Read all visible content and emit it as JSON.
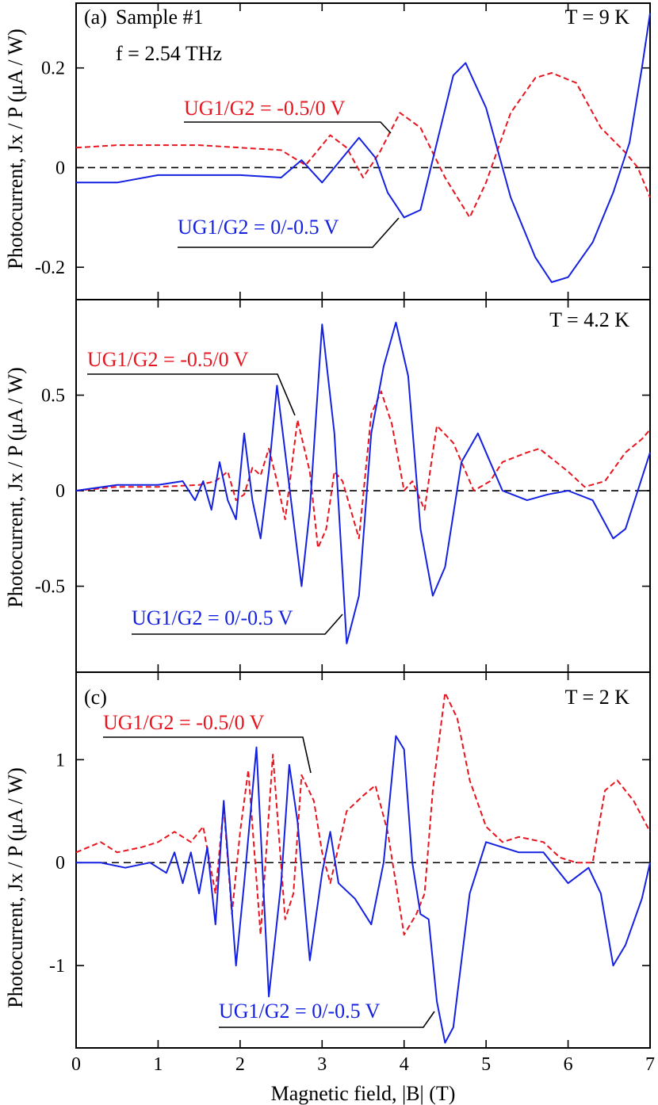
{
  "chart_data": [
    {
      "type": "line",
      "panel_label": "(a)",
      "sample": "Sample #1",
      "frequency_label": "f = 2.54 THz",
      "temperature_label": "T = 9 K",
      "ylabel": "Photocurrent, Jx / P (μA / W)",
      "xlabel": "",
      "xlim": [
        0,
        7
      ],
      "ylim": [
        -0.265,
        0.33
      ],
      "x_ticks": [
        0,
        1,
        2,
        3,
        4,
        5,
        6,
        7
      ],
      "y_ticks": [
        -0.2,
        0,
        0.2
      ],
      "y_tick_labels": [
        "-0.2",
        "0",
        "0.2"
      ],
      "zero_line": true,
      "series": [
        {
          "name": "UG1/G2 = -0.5/0 V",
          "color": "#e8141e",
          "dash": "dashed",
          "points": [
            [
              0,
              0.04
            ],
            [
              0.5,
              0.045
            ],
            [
              1,
              0.045
            ],
            [
              1.5,
              0.045
            ],
            [
              2,
              0.04
            ],
            [
              2.5,
              0.035
            ],
            [
              2.8,
              0.005
            ],
            [
              3.1,
              0.065
            ],
            [
              3.3,
              0.04
            ],
            [
              3.5,
              -0.02
            ],
            [
              3.7,
              0.03
            ],
            [
              3.95,
              0.11
            ],
            [
              4.2,
              0.08
            ],
            [
              4.5,
              -0.02
            ],
            [
              4.8,
              -0.1
            ],
            [
              5.0,
              -0.03
            ],
            [
              5.3,
              0.11
            ],
            [
              5.6,
              0.18
            ],
            [
              5.8,
              0.19
            ],
            [
              6.1,
              0.17
            ],
            [
              6.4,
              0.08
            ],
            [
              6.7,
              0.03
            ],
            [
              6.85,
              0.0
            ],
            [
              7.0,
              -0.06
            ]
          ]
        },
        {
          "name": "UG1/G2 = 0/-0.5 V",
          "color": "#1421e0",
          "dash": "solid",
          "points": [
            [
              0,
              -0.03
            ],
            [
              0.5,
              -0.03
            ],
            [
              1,
              -0.015
            ],
            [
              1.5,
              -0.015
            ],
            [
              2,
              -0.015
            ],
            [
              2.5,
              -0.02
            ],
            [
              2.75,
              0.015
            ],
            [
              3.0,
              -0.03
            ],
            [
              3.2,
              0.01
            ],
            [
              3.45,
              0.06
            ],
            [
              3.65,
              0.02
            ],
            [
              3.8,
              -0.05
            ],
            [
              4.0,
              -0.1
            ],
            [
              4.2,
              -0.085
            ],
            [
              4.4,
              0.05
            ],
            [
              4.6,
              0.185
            ],
            [
              4.75,
              0.21
            ],
            [
              5.0,
              0.12
            ],
            [
              5.3,
              -0.06
            ],
            [
              5.6,
              -0.18
            ],
            [
              5.8,
              -0.23
            ],
            [
              6.0,
              -0.22
            ],
            [
              6.3,
              -0.15
            ],
            [
              6.55,
              -0.05
            ],
            [
              6.75,
              0.05
            ],
            [
              6.9,
              0.2
            ],
            [
              7.0,
              0.31
            ]
          ]
        }
      ],
      "annotations": [
        {
          "text": "UG1/G2 = -0.5/0 V",
          "color": "#e8141e"
        },
        {
          "text": "UG1/G2 = 0/-0.5 V",
          "color": "#1421e0"
        }
      ]
    },
    {
      "type": "line",
      "panel_label": "",
      "temperature_label": "T = 4.2 K",
      "ylabel": "Photocurrent, Jx / P (μA / W)",
      "xlabel": "",
      "xlim": [
        0,
        7
      ],
      "ylim": [
        -0.95,
        1.0
      ],
      "x_ticks": [
        0,
        1,
        2,
        3,
        4,
        5,
        6,
        7
      ],
      "y_ticks": [
        -0.5,
        0,
        0.5
      ],
      "y_tick_labels": [
        "-0.5",
        "0",
        "0.5"
      ],
      "zero_line": true,
      "series": [
        {
          "name": "UG1/G2 = -0.5/0 V",
          "color": "#e8141e",
          "dash": "dashed",
          "points": [
            [
              0,
              0.0
            ],
            [
              0.5,
              0.02
            ],
            [
              1,
              0.02
            ],
            [
              1.5,
              0.03
            ],
            [
              1.7,
              0.05
            ],
            [
              1.85,
              0.1
            ],
            [
              1.95,
              -0.05
            ],
            [
              2.05,
              -0.02
            ],
            [
              2.15,
              0.12
            ],
            [
              2.25,
              0.08
            ],
            [
              2.35,
              0.22
            ],
            [
              2.45,
              0.05
            ],
            [
              2.55,
              -0.15
            ],
            [
              2.7,
              0.37
            ],
            [
              2.85,
              0.1
            ],
            [
              2.95,
              -0.3
            ],
            [
              3.05,
              -0.2
            ],
            [
              3.15,
              0.1
            ],
            [
              3.25,
              0.05
            ],
            [
              3.45,
              -0.25
            ],
            [
              3.6,
              0.4
            ],
            [
              3.72,
              0.52
            ],
            [
              3.85,
              0.35
            ],
            [
              4.0,
              0.0
            ],
            [
              4.1,
              0.05
            ],
            [
              4.25,
              -0.1
            ],
            [
              4.35,
              0.2
            ],
            [
              4.4,
              0.34
            ],
            [
              4.6,
              0.25
            ],
            [
              4.85,
              0.0
            ],
            [
              5.05,
              0.05
            ],
            [
              5.2,
              0.15
            ],
            [
              5.5,
              0.2
            ],
            [
              5.65,
              0.22
            ],
            [
              6.0,
              0.1
            ],
            [
              6.2,
              0.02
            ],
            [
              6.45,
              0.05
            ],
            [
              6.7,
              0.2
            ],
            [
              6.9,
              0.27
            ],
            [
              7.0,
              0.32
            ]
          ]
        },
        {
          "name": "UG1/G2 = 0/-0.5 V",
          "color": "#1421e0",
          "dash": "solid",
          "points": [
            [
              0,
              0.0
            ],
            [
              0.5,
              0.03
            ],
            [
              1,
              0.03
            ],
            [
              1.3,
              0.05
            ],
            [
              1.45,
              -0.05
            ],
            [
              1.55,
              0.05
            ],
            [
              1.65,
              -0.1
            ],
            [
              1.75,
              0.15
            ],
            [
              1.85,
              -0.05
            ],
            [
              1.95,
              -0.15
            ],
            [
              2.05,
              0.3
            ],
            [
              2.15,
              -0.05
            ],
            [
              2.25,
              -0.25
            ],
            [
              2.35,
              0.1
            ],
            [
              2.45,
              0.55
            ],
            [
              2.55,
              0.2
            ],
            [
              2.75,
              -0.5
            ],
            [
              2.85,
              -0.1
            ],
            [
              3.0,
              0.87
            ],
            [
              3.15,
              0.3
            ],
            [
              3.3,
              -0.8
            ],
            [
              3.45,
              -0.55
            ],
            [
              3.6,
              0.3
            ],
            [
              3.75,
              0.65
            ],
            [
              3.9,
              0.88
            ],
            [
              4.05,
              0.6
            ],
            [
              4.2,
              -0.2
            ],
            [
              4.35,
              -0.55
            ],
            [
              4.5,
              -0.4
            ],
            [
              4.7,
              0.15
            ],
            [
              4.9,
              0.3
            ],
            [
              5.0,
              0.2
            ],
            [
              5.2,
              0.0
            ],
            [
              5.5,
              -0.05
            ],
            [
              5.75,
              -0.02
            ],
            [
              6.0,
              0.0
            ],
            [
              6.3,
              -0.05
            ],
            [
              6.55,
              -0.25
            ],
            [
              6.7,
              -0.2
            ],
            [
              6.85,
              0.0
            ],
            [
              7.0,
              0.2
            ]
          ]
        }
      ],
      "annotations": [
        {
          "text": "UG1/G2 = -0.5/0 V",
          "color": "#e8141e"
        },
        {
          "text": "UG1/G2 = 0/-0.5 V",
          "color": "#1421e0"
        }
      ]
    },
    {
      "type": "line",
      "panel_label": "(c)",
      "temperature_label": "T = 2 K",
      "ylabel": "Photocurrent, Jx / P (μA / W)",
      "xlabel": "Magnetic field, |B| (T)",
      "xlim": [
        0,
        7
      ],
      "ylim": [
        -1.8,
        1.85
      ],
      "x_ticks": [
        0,
        1,
        2,
        3,
        4,
        5,
        6,
        7
      ],
      "x_tick_labels": [
        "0",
        "1",
        "2",
        "3",
        "4",
        "5",
        "6",
        "7"
      ],
      "y_ticks": [
        -1,
        0,
        1
      ],
      "y_tick_labels": [
        "-1",
        "0",
        "1"
      ],
      "zero_line": true,
      "series": [
        {
          "name": "UG1/G2 = -0.5/0 V",
          "color": "#e8141e",
          "dash": "dashed",
          "points": [
            [
              0,
              0.1
            ],
            [
              0.3,
              0.2
            ],
            [
              0.5,
              0.1
            ],
            [
              0.8,
              0.15
            ],
            [
              1.0,
              0.2
            ],
            [
              1.2,
              0.3
            ],
            [
              1.4,
              0.2
            ],
            [
              1.55,
              0.35
            ],
            [
              1.7,
              -0.3
            ],
            [
              1.8,
              0.55
            ],
            [
              1.9,
              -0.5
            ],
            [
              2.0,
              0.3
            ],
            [
              2.1,
              0.9
            ],
            [
              2.25,
              -0.7
            ],
            [
              2.4,
              1.05
            ],
            [
              2.55,
              -0.55
            ],
            [
              2.65,
              -0.3
            ],
            [
              2.75,
              0.85
            ],
            [
              2.9,
              0.6
            ],
            [
              3.0,
              0.1
            ],
            [
              3.1,
              -0.2
            ],
            [
              3.3,
              0.5
            ],
            [
              3.5,
              0.65
            ],
            [
              3.65,
              0.75
            ],
            [
              3.8,
              0.3
            ],
            [
              4.0,
              -0.7
            ],
            [
              4.15,
              -0.5
            ],
            [
              4.25,
              -0.3
            ],
            [
              4.35,
              0.7
            ],
            [
              4.5,
              1.65
            ],
            [
              4.65,
              1.4
            ],
            [
              4.8,
              0.8
            ],
            [
              5.0,
              0.35
            ],
            [
              5.2,
              0.2
            ],
            [
              5.4,
              0.25
            ],
            [
              5.7,
              0.2
            ],
            [
              5.9,
              0.05
            ],
            [
              6.1,
              0.0
            ],
            [
              6.3,
              0.0
            ],
            [
              6.45,
              0.7
            ],
            [
              6.6,
              0.8
            ],
            [
              6.8,
              0.6
            ],
            [
              7.0,
              0.3
            ]
          ]
        },
        {
          "name": "UG1/G2 = 0/-0.5 V",
          "color": "#1421e0",
          "dash": "solid",
          "points": [
            [
              0,
              0.0
            ],
            [
              0.3,
              0.0
            ],
            [
              0.6,
              -0.05
            ],
            [
              0.9,
              0.0
            ],
            [
              1.1,
              -0.1
            ],
            [
              1.2,
              0.1
            ],
            [
              1.3,
              -0.2
            ],
            [
              1.4,
              0.1
            ],
            [
              1.5,
              -0.3
            ],
            [
              1.6,
              0.15
            ],
            [
              1.7,
              -0.6
            ],
            [
              1.8,
              0.6
            ],
            [
              1.95,
              -1.0
            ],
            [
              2.05,
              -0.2
            ],
            [
              2.2,
              1.12
            ],
            [
              2.35,
              -1.3
            ],
            [
              2.5,
              -0.2
            ],
            [
              2.6,
              0.95
            ],
            [
              2.7,
              0.4
            ],
            [
              2.85,
              -0.95
            ],
            [
              3.0,
              -0.1
            ],
            [
              3.1,
              0.3
            ],
            [
              3.2,
              -0.2
            ],
            [
              3.4,
              -0.35
            ],
            [
              3.6,
              -0.6
            ],
            [
              3.75,
              0.0
            ],
            [
              3.9,
              1.23
            ],
            [
              4.0,
              1.1
            ],
            [
              4.1,
              0.0
            ],
            [
              4.2,
              -0.5
            ],
            [
              4.3,
              -0.55
            ],
            [
              4.4,
              -1.35
            ],
            [
              4.5,
              -1.75
            ],
            [
              4.6,
              -1.6
            ],
            [
              4.8,
              -0.3
            ],
            [
              5.0,
              0.2
            ],
            [
              5.2,
              0.15
            ],
            [
              5.4,
              0.1
            ],
            [
              5.7,
              0.1
            ],
            [
              5.9,
              -0.1
            ],
            [
              6.0,
              -0.2
            ],
            [
              6.25,
              -0.05
            ],
            [
              6.4,
              -0.3
            ],
            [
              6.55,
              -1.0
            ],
            [
              6.7,
              -0.8
            ],
            [
              6.9,
              -0.35
            ],
            [
              7.0,
              0.0
            ]
          ]
        }
      ],
      "annotations": [
        {
          "text": "UG1/G2 = -0.5/0 V",
          "color": "#e8141e"
        },
        {
          "text": "UG1/G2 = 0/-0.5 V",
          "color": "#1421e0"
        }
      ]
    }
  ]
}
